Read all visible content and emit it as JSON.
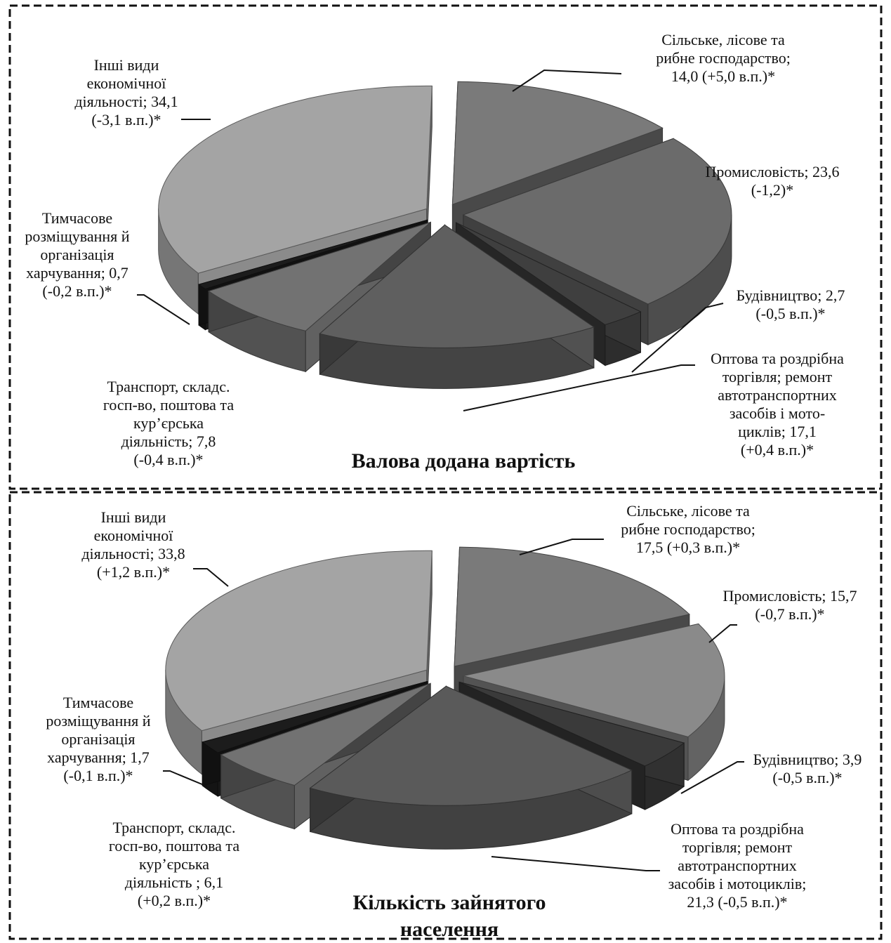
{
  "chart_data": [
    {
      "type": "pie",
      "title": "Валова додана вартість",
      "slices": [
        {
          "label_lines": [
            "Сільське, лісове та",
            "рибне господарство;",
            "14,0 (+5,0 в.п.)*"
          ],
          "value": 14.0,
          "change": 5.0,
          "color": "#7a7a7a"
        },
        {
          "label_lines": [
            "Промисловість; 23,6",
            "(-1,2)*"
          ],
          "value": 23.6,
          "change": -1.2,
          "color": "#6b6b6b"
        },
        {
          "label_lines": [
            "Будівництво; 2,7",
            "(-0,5 в.п.)*"
          ],
          "value": 2.7,
          "change": -0.5,
          "color": "#3f3f3f"
        },
        {
          "label_lines": [
            "Оптова та роздрібна",
            "торгівля; ремонт",
            "автотранспортних",
            "засобів і мото-",
            "циклів; 17,1",
            "(+0,4 в.п.)*"
          ],
          "value": 17.1,
          "change": 0.4,
          "color": "#5f5f5f"
        },
        {
          "label_lines": [
            "Транспорт, складс.",
            "госп-во, поштова та",
            "кур’єрська",
            "діяльність; 7,8",
            "(-0,4 в.п.)*"
          ],
          "value": 7.8,
          "change": -0.4,
          "color": "#727272"
        },
        {
          "label_lines": [
            "Тимчасове",
            "розміщування й",
            "організація",
            "харчування; 0,7",
            "(-0,2 в.п.)*"
          ],
          "value": 0.7,
          "change": -0.2,
          "color": "#1c1c1c"
        },
        {
          "label_lines": [
            "Інші види",
            "економічної",
            "діяльності; 34,1",
            "(-3,1 в.п.)*"
          ],
          "value": 34.1,
          "change": -3.1,
          "color": "#a4a4a4"
        }
      ]
    },
    {
      "type": "pie",
      "title": "Кількість зайнятого населення",
      "slices": [
        {
          "label_lines": [
            "Сільське, лісове та",
            "рибне господарство;",
            "17,5 (+0,3 в.п.)*"
          ],
          "value": 17.5,
          "change": 0.3,
          "color": "#7a7a7a"
        },
        {
          "label_lines": [
            "Промисловість; 15,7",
            "(-0,7 в.п.)*"
          ],
          "value": 15.7,
          "change": -0.7,
          "color": "#8a8a8a"
        },
        {
          "label_lines": [
            "Будівництво; 3,9",
            "(-0,5 в.п.)*"
          ],
          "value": 3.9,
          "change": -0.5,
          "color": "#3a3a3a"
        },
        {
          "label_lines": [
            "Оптова та роздрібна",
            "торгівля; ремонт",
            "автотранспортних",
            "засобів і мотоциклів;",
            "21,3 (-0,5 в.п.)*"
          ],
          "value": 21.3,
          "change": -0.5,
          "color": "#5a5a5a"
        },
        {
          "label_lines": [
            "Транспорт, складс.",
            "госп-во, поштова та",
            "кур’єрська",
            "діяльність ; 6,1",
            "(+0,2 в.п.)*"
          ],
          "value": 6.1,
          "change": 0.2,
          "color": "#727272"
        },
        {
          "label_lines": [
            "Тимчасове",
            "розміщування й",
            "організація",
            "харчування; 1,7",
            "(-0,1 в.п.)*"
          ],
          "value": 1.7,
          "change": -0.1,
          "color": "#1c1c1c"
        },
        {
          "label_lines": [
            "Інші види",
            "економічної",
            "діяльності; 33,8",
            "(+1,2 в.п.)*"
          ],
          "value": 33.8,
          "change": 1.2,
          "color": "#a4a4a4"
        }
      ]
    }
  ]
}
